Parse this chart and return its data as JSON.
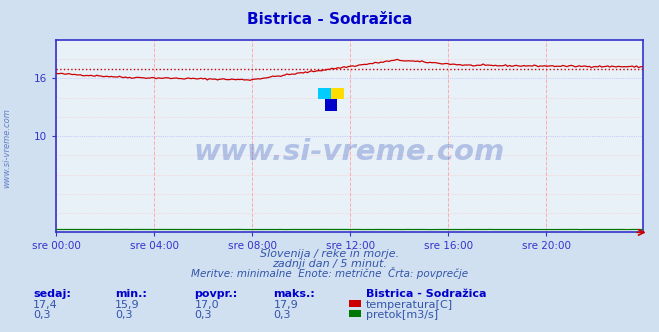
{
  "title_display": "Bistrica - Sodražica",
  "bg_color": "#d0e0f0",
  "plot_bg_color": "#e8f0f8",
  "x_ticks_labels": [
    "sre 00:00",
    "sre 04:00",
    "sre 08:00",
    "sre 12:00",
    "sre 16:00",
    "sre 20:00"
  ],
  "x_ticks_positions": [
    0,
    48,
    96,
    144,
    192,
    240
  ],
  "x_max": 287,
  "y_min": 0,
  "y_max": 20,
  "y_ticks": [
    10,
    16
  ],
  "temp_color": "#cc0000",
  "temp_avg_color": "#cc0000",
  "flow_color": "#007700",
  "watermark_color": "#3355bb",
  "watermark_text": "www.si-vreme.com",
  "ylabel_text": "www.si-vreme.com",
  "subtitle1": "Slovenija / reke in morje.",
  "subtitle2": "zadnji dan / 5 minut.",
  "subtitle3": "Meritve: minimalne  Enote: metrične  Črta: povprečje",
  "legend_title": "Bistrica - Sodražica",
  "legend_items": [
    {
      "label": "temperatura[C]",
      "color": "#cc0000"
    },
    {
      "label": "pretok[m3/s]",
      "color": "#007700"
    }
  ],
  "stats_headers": [
    "sedaj:",
    "min.:",
    "povpr.:",
    "maks.:"
  ],
  "stats_temp": [
    "17,4",
    "15,9",
    "17,0",
    "17,9"
  ],
  "stats_flow": [
    "0,3",
    "0,3",
    "0,3",
    "0,3"
  ],
  "temp_avg_value": 17.0,
  "n_points": 288,
  "logo_colors": [
    "#00ccff",
    "#ffdd00",
    "#0000cc"
  ],
  "spine_color": "#3333cc",
  "tick_color": "#3333aa",
  "grid_v_color": "#ffaaaa",
  "grid_h_color": "#ffbbbb",
  "grid_h_major_color": "#aaaaff"
}
